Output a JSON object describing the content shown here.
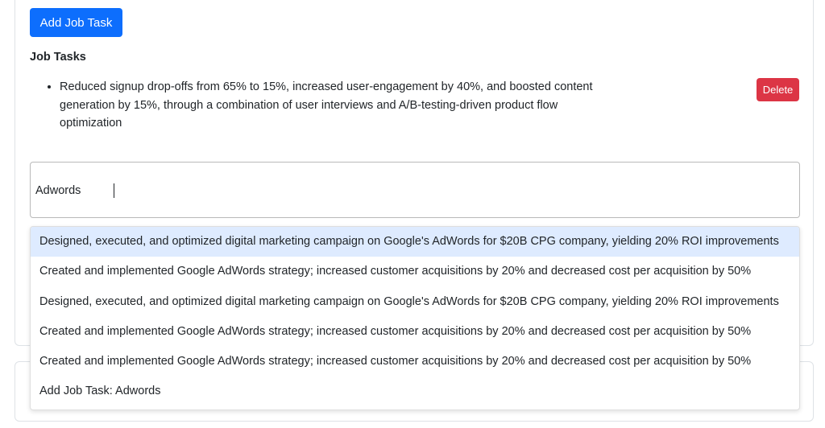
{
  "actions": {
    "add_job_task_label": "Add Job Task"
  },
  "job_tasks": {
    "title": "Job Tasks",
    "items": [
      {
        "text": "Reduced signup drop-offs from 65% to 15%, increased user-engagement by 40%, and boosted content generation by 15%, through a combination of user interviews and A/B-testing-driven product flow optimization"
      }
    ],
    "delete_label": "Delete"
  },
  "search": {
    "value": "Adwords"
  },
  "suggestions": [
    {
      "text": "Designed, executed, and optimized digital marketing campaign on Google's AdWords for $20B CPG company, yielding 20% ROI improvements",
      "highlighted": true
    },
    {
      "text": "Created and implemented Google AdWords strategy; increased customer acquisitions by 20% and decreased cost per acquisition by 50%",
      "highlighted": false
    },
    {
      "text": "Designed, executed, and optimized digital marketing campaign on Google's AdWords for $20B CPG company, yielding 20% ROI improvements",
      "highlighted": false
    },
    {
      "text": "Created and implemented Google AdWords strategy; increased customer acquisitions by 20% and decreased cost per acquisition by 50%",
      "highlighted": false
    },
    {
      "text": "Created and implemented Google AdWords strategy; increased customer acquisitions by 20% and decreased cost per acquisition by 50%",
      "highlighted": false
    },
    {
      "text": "Add Job Task: Adwords",
      "highlighted": false
    }
  ],
  "colors": {
    "primary": "#0d6efd",
    "danger": "#dc3545",
    "option_highlight": "#deebff"
  }
}
